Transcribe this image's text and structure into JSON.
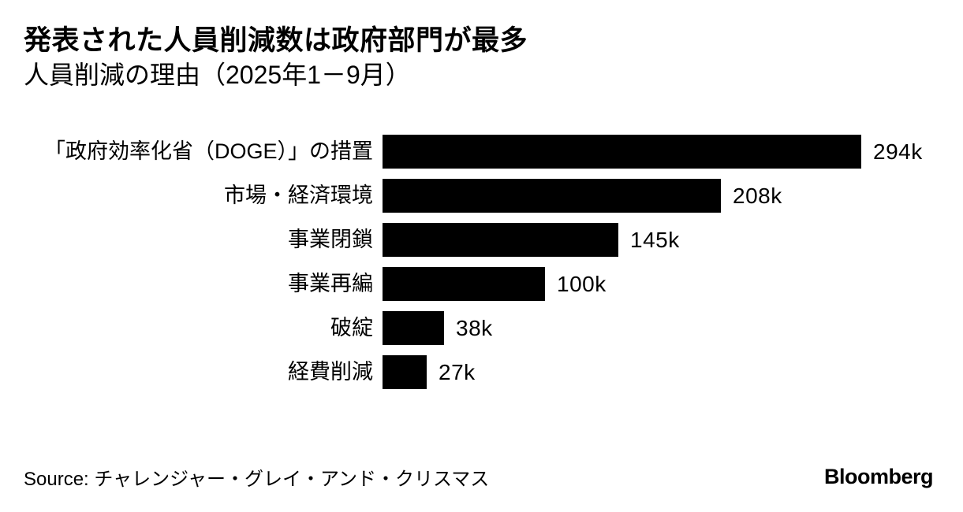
{
  "header": {
    "title": "発表された人員削減数は政府部門が最多",
    "subtitle": "人員削減の理由（2025年1－9月）"
  },
  "chart_data": {
    "type": "bar",
    "orientation": "horizontal",
    "title": "発表された人員削減数は政府部門が最多",
    "subtitle": "人員削減の理由（2025年1－9月）",
    "categories": [
      "「政府効率化省（DOGE）」の措置",
      "市場・経済環境",
      "事業閉鎖",
      "事業再編",
      "破綻",
      "経費削減"
    ],
    "values": [
      294,
      208,
      145,
      100,
      38,
      27
    ],
    "value_labels": [
      "294k",
      "208k",
      "145k",
      "100k",
      "38k",
      "27k"
    ],
    "unit": "k",
    "xlim": [
      0,
      294
    ],
    "bar_color": "#000000",
    "grid": false,
    "legend": false
  },
  "footer": {
    "source": "Source: チャレンジャー・グレイ・アンド・クリスマス",
    "brand": "Bloomberg"
  }
}
